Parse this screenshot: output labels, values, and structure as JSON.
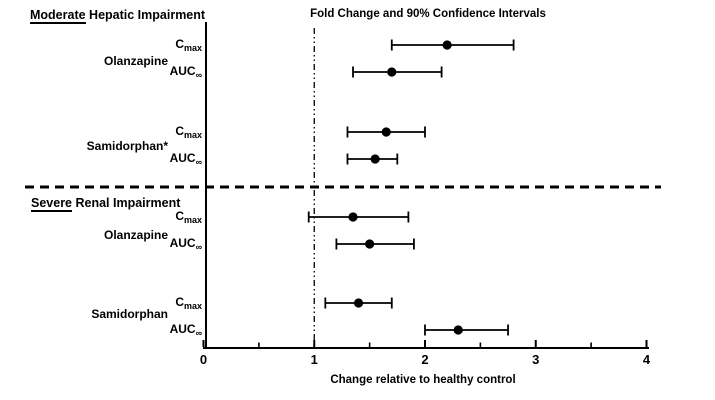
{
  "title": "Fold Change and 90% Confidence Intervals",
  "x_axis_label": "Change relative to healthy control",
  "sections": [
    {
      "heading_underlined": "Moderate",
      "heading_rest": " Hepatic Impairment"
    },
    {
      "heading_underlined": "Severe",
      "heading_rest": " Renal Impairment"
    }
  ],
  "chart_data": {
    "type": "scatter",
    "subtype": "forest-plot",
    "title": "Fold Change and 90% Confidence Intervals",
    "xlabel": "Change relative to healthy control",
    "xlim": [
      0,
      4
    ],
    "x_major_ticks": [
      0,
      1,
      2,
      3,
      4
    ],
    "x_minor_ticks": [
      0.5,
      1.5,
      2.5,
      3.5
    ],
    "reference_line_x": 1,
    "interval_type": "90% confidence interval",
    "grid": false,
    "legend": false,
    "sections": [
      {
        "label": "Moderate Hepatic Impairment",
        "drugs": [
          {
            "name": "Olanzapine",
            "rows": [
              {
                "param_base": "C",
                "param_sub": "max",
                "estimate": 2.2,
                "ci_low": 1.7,
                "ci_high": 2.8
              },
              {
                "param_base": "AUC",
                "param_sub": "∞",
                "estimate": 1.7,
                "ci_low": 1.35,
                "ci_high": 2.15
              }
            ]
          },
          {
            "name": "Samidorphan*",
            "rows": [
              {
                "param_base": "C",
                "param_sub": "max",
                "estimate": 1.65,
                "ci_low": 1.3,
                "ci_high": 2.0
              },
              {
                "param_base": "AUC",
                "param_sub": "∞",
                "estimate": 1.55,
                "ci_low": 1.3,
                "ci_high": 1.75
              }
            ]
          }
        ]
      },
      {
        "label": "Severe Renal Impairment",
        "drugs": [
          {
            "name": "Olanzapine",
            "rows": [
              {
                "param_base": "C",
                "param_sub": "max",
                "estimate": 1.35,
                "ci_low": 0.95,
                "ci_high": 1.85
              },
              {
                "param_base": "AUC",
                "param_sub": "∞",
                "estimate": 1.5,
                "ci_low": 1.2,
                "ci_high": 1.9
              }
            ]
          },
          {
            "name": "Samidorphan",
            "rows": [
              {
                "param_base": "C",
                "param_sub": "max",
                "estimate": 1.4,
                "ci_low": 1.1,
                "ci_high": 1.7
              },
              {
                "param_base": "AUC",
                "param_sub": "∞",
                "estimate": 2.3,
                "ci_low": 2.0,
                "ci_high": 2.75
              }
            ]
          }
        ]
      }
    ],
    "colors": {
      "foreground": "#000000",
      "background": "#ffffff"
    }
  }
}
